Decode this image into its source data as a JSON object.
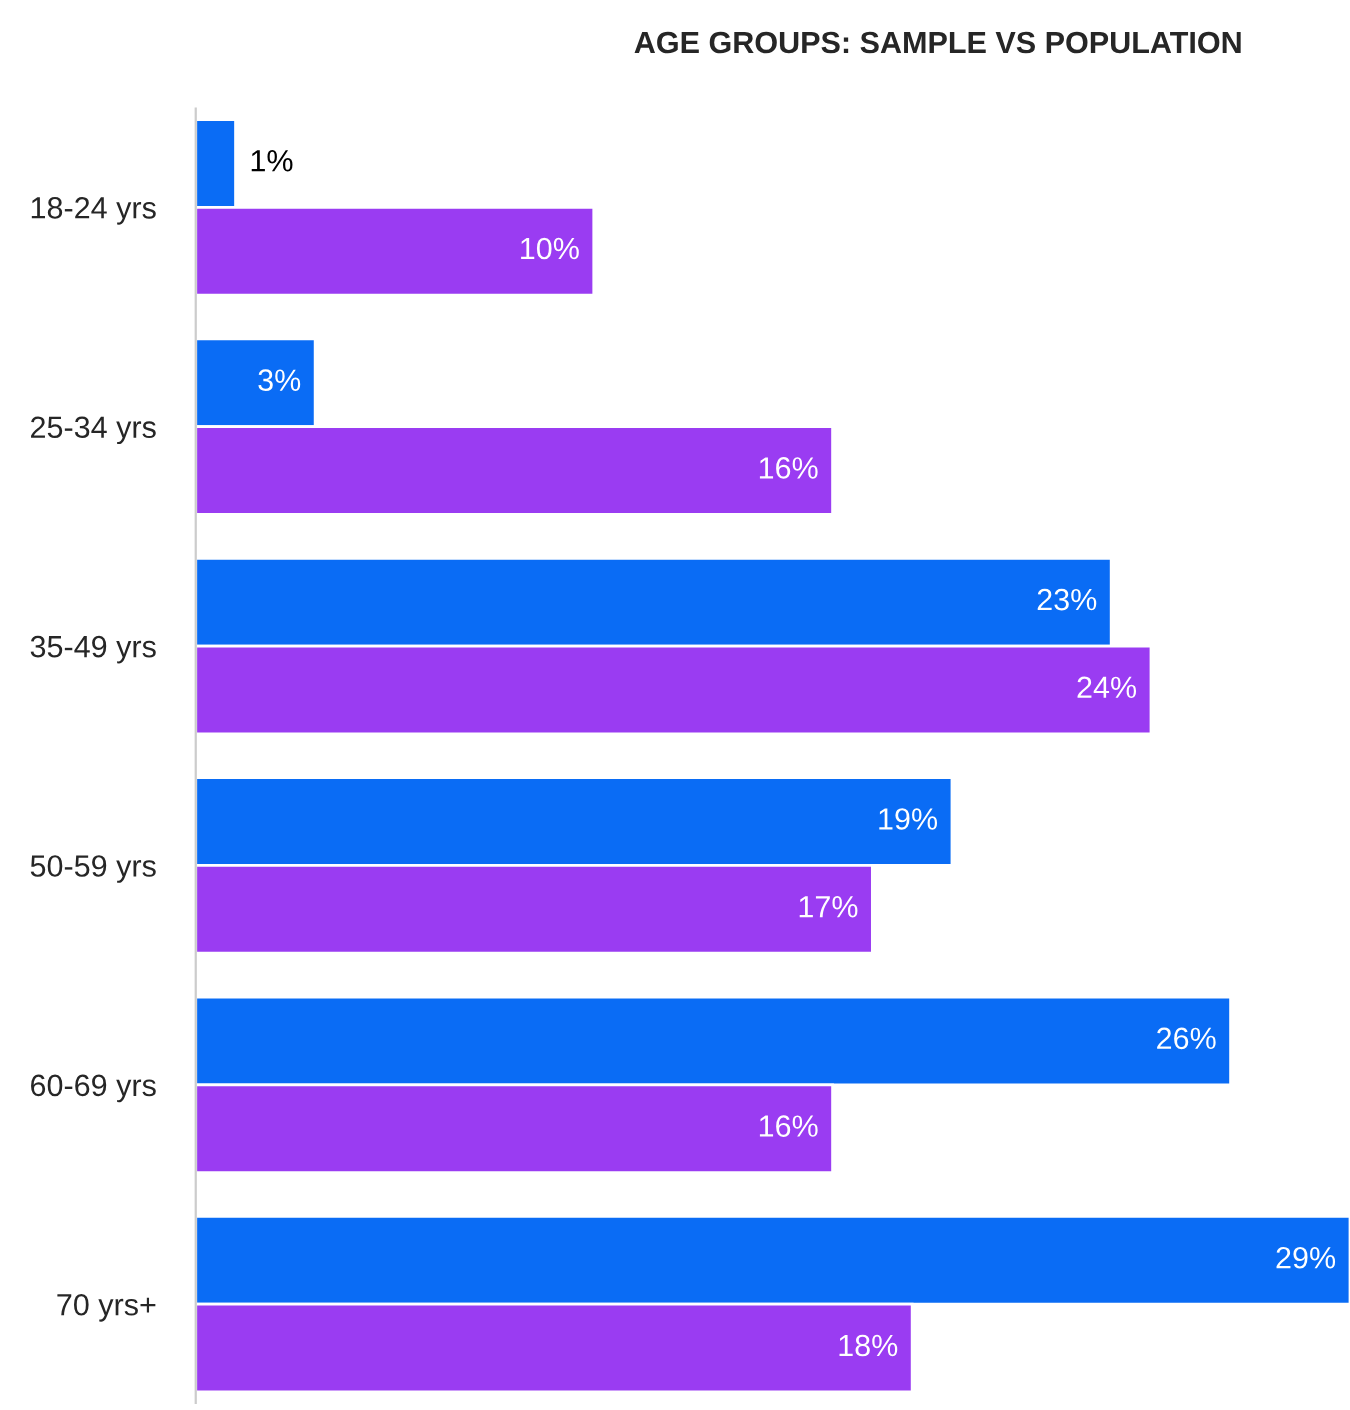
{
  "chart_data": {
    "type": "bar",
    "orientation": "horizontal",
    "title": "AGE GROUPS: SAMPLE VS POPULATION",
    "categories": [
      "18-24 yrs",
      "25-34 yrs",
      "35-49 yrs",
      "50-59 yrs",
      "60-69 yrs",
      "70 yrs+"
    ],
    "series": [
      {
        "color": "#0a6cf5",
        "values": [
          1,
          3,
          23,
          19,
          26,
          29
        ],
        "value_labels": [
          "1%",
          "3%",
          "23%",
          "19%",
          "26%",
          "29%"
        ]
      },
      {
        "color": "#9a3cf2",
        "values": [
          10,
          16,
          24,
          17,
          16,
          18
        ],
        "value_labels": [
          "10%",
          "16%",
          "24%",
          "17%",
          "16%",
          "18%"
        ]
      }
    ],
    "grid": false,
    "legend": false
  }
}
